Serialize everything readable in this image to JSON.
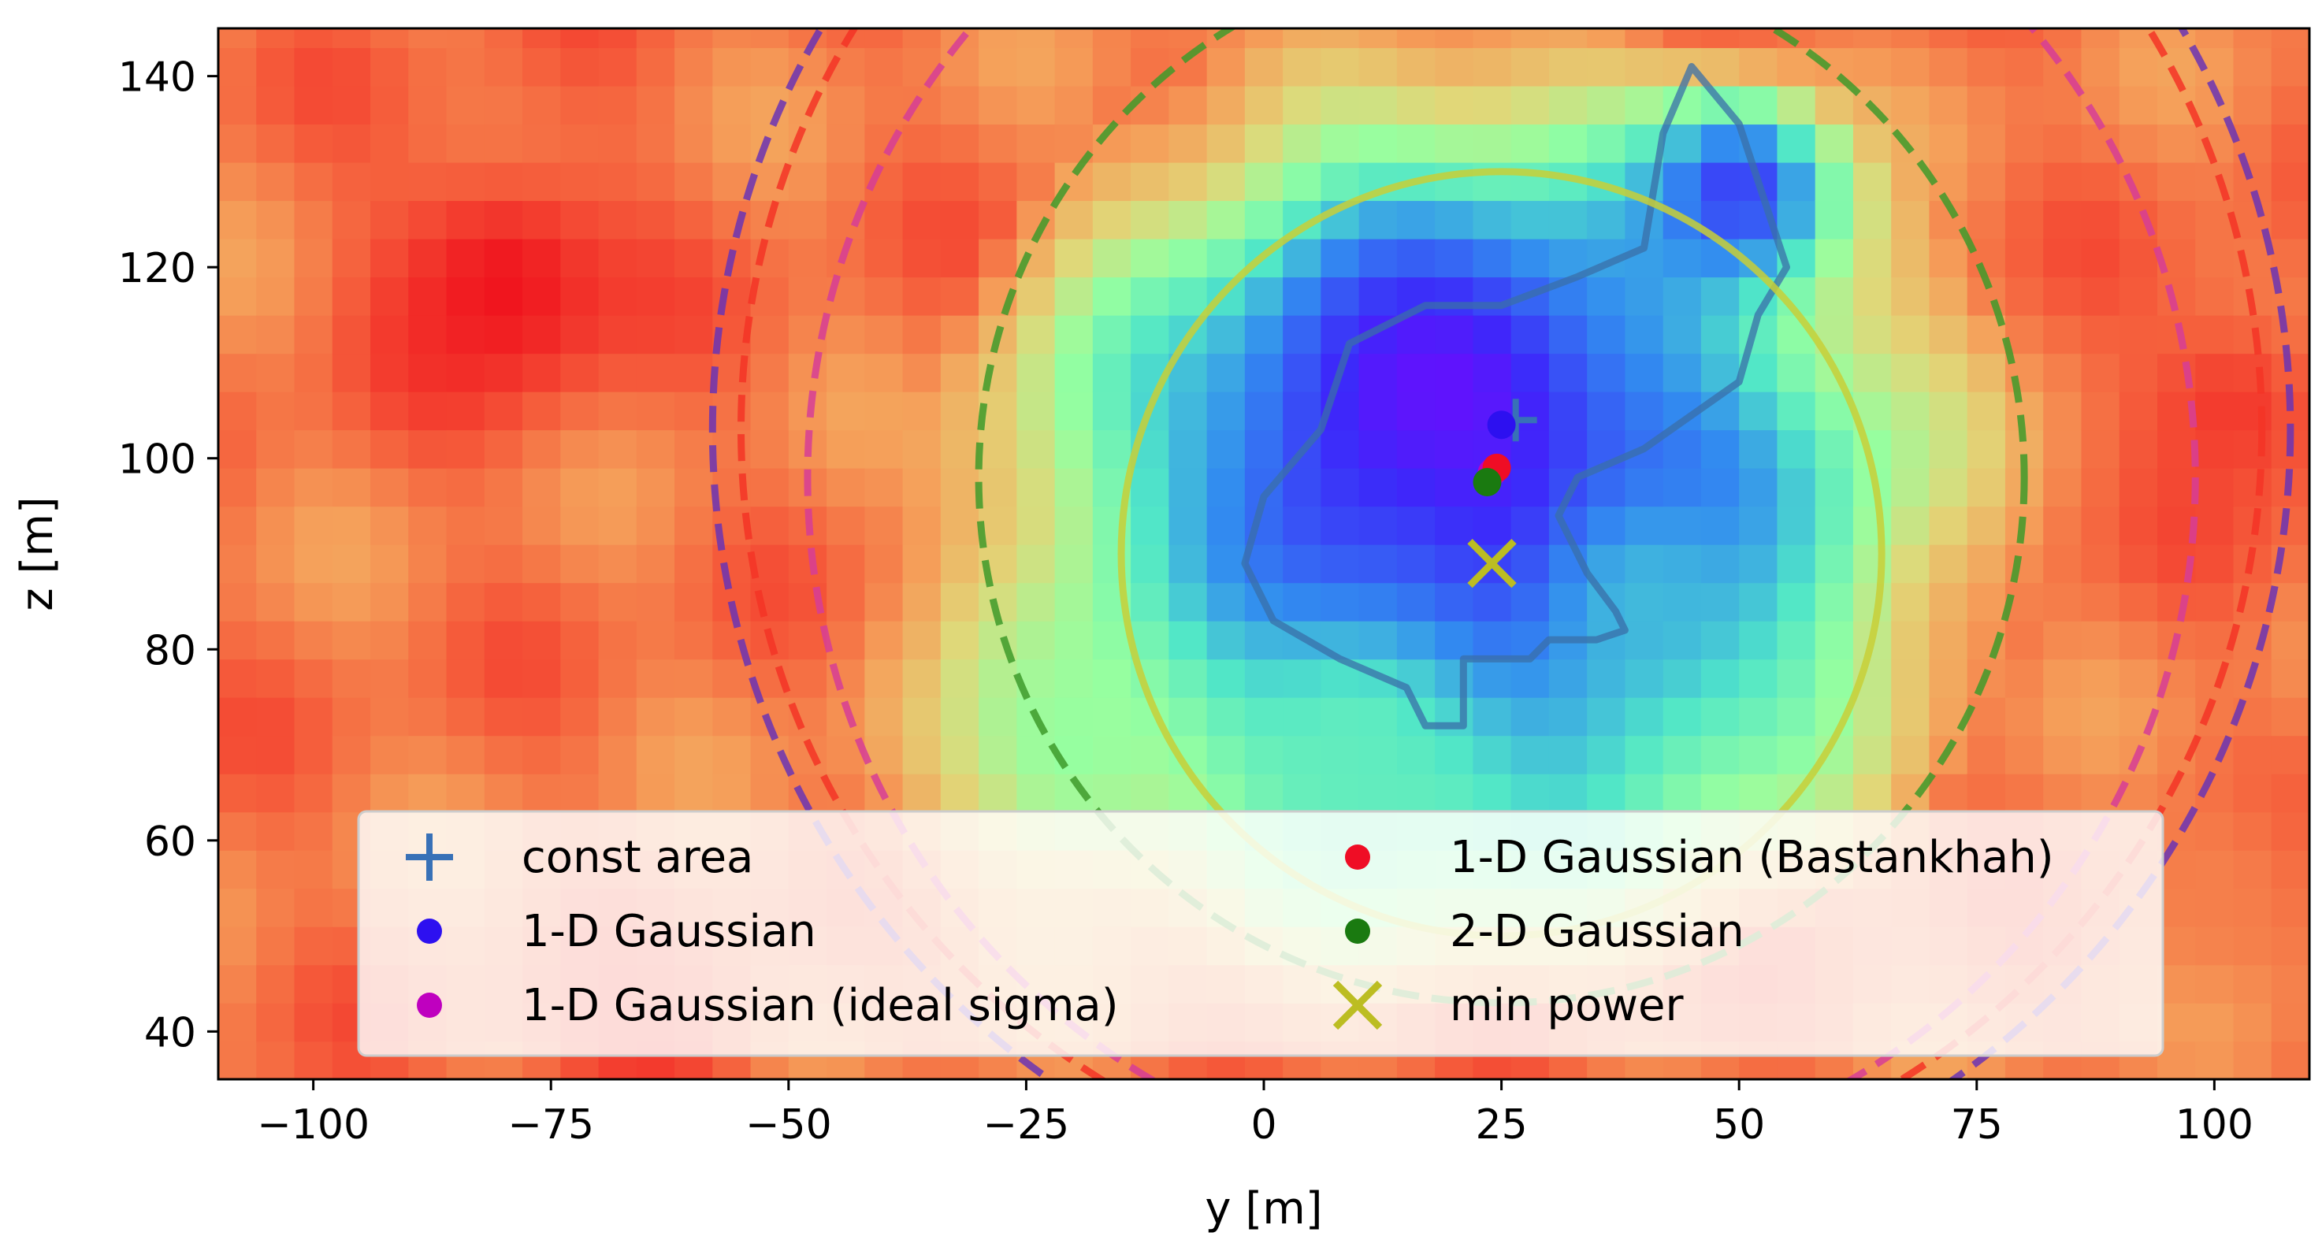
{
  "chart_data": {
    "type": "heatmap",
    "title": "",
    "xlabel": "y [m]",
    "ylabel": "z [m]",
    "xlim": [
      -110,
      110
    ],
    "ylim": [
      35,
      145
    ],
    "xticks": [
      -100,
      -75,
      -50,
      -25,
      0,
      25,
      50,
      75,
      100
    ],
    "xtick_labels": [
      "−100",
      "−75",
      "−50",
      "−25",
      "0",
      "25",
      "50",
      "75",
      "100"
    ],
    "yticks": [
      40,
      60,
      80,
      100,
      120,
      140
    ],
    "ytick_labels": [
      "40",
      "60",
      "80",
      "100",
      "120",
      "140"
    ],
    "colormap": "rainbow",
    "heatmap_features": [
      {
        "y": -80,
        "z": 118,
        "level": 1.0,
        "spread": 14
      },
      {
        "y": -65,
        "z": 38,
        "level": 0.95,
        "spread": 12
      },
      {
        "y": 102,
        "z": 105,
        "level": 0.95,
        "spread": 12
      },
      {
        "y": 100,
        "z": 55,
        "level": 0.85,
        "spread": 12
      },
      {
        "y": 18,
        "z": 105,
        "level": 0.04,
        "spread": 16
      },
      {
        "y": 12,
        "z": 88,
        "level": 0.12,
        "spread": 14
      },
      {
        "y": 50,
        "z": 128,
        "level": 0.15,
        "spread": 10
      },
      {
        "y": 10,
        "z": 70,
        "level": 0.45,
        "spread": 16
      },
      {
        "y": 40,
        "z": 85,
        "level": 0.35,
        "spread": 12
      },
      {
        "y": -20,
        "z": 70,
        "level": 0.55,
        "spread": 16
      }
    ],
    "contour_region": [
      [
        21,
        79
      ],
      [
        28,
        79
      ],
      [
        30,
        81
      ],
      [
        35,
        81
      ],
      [
        38,
        82
      ],
      [
        37,
        84
      ],
      [
        34,
        88
      ],
      [
        31,
        94
      ],
      [
        33,
        98
      ],
      [
        40,
        101
      ],
      [
        50,
        108
      ],
      [
        52,
        115
      ],
      [
        55,
        120
      ],
      [
        50,
        135
      ],
      [
        45,
        141
      ],
      [
        42,
        134
      ],
      [
        40,
        122
      ],
      [
        33,
        119
      ],
      [
        25,
        116
      ],
      [
        17,
        116
      ],
      [
        9,
        112
      ],
      [
        6,
        103
      ],
      [
        0,
        96
      ],
      [
        -2,
        89
      ],
      [
        1,
        83
      ],
      [
        8,
        79
      ],
      [
        15,
        76
      ],
      [
        17,
        72
      ],
      [
        21,
        72
      ]
    ],
    "circles": [
      {
        "name": "yellow-solid",
        "cy": 25,
        "cz": 90,
        "r": 40,
        "color": "#c8cf37",
        "style": "solid"
      },
      {
        "name": "green-dashed",
        "cy": 25,
        "cz": 98,
        "r": 55,
        "color": "#3e9a2a",
        "style": "dashed"
      },
      {
        "name": "magenta-dashed",
        "cy": 25,
        "cz": 98,
        "r": 73,
        "color": "#d63d96",
        "style": "dashed"
      },
      {
        "name": "red-dashed",
        "cy": 25,
        "cz": 103,
        "r": 80,
        "color": "#f33426",
        "style": "dashed"
      },
      {
        "name": "purple-dashed",
        "cy": 25,
        "cz": 103,
        "r": 83,
        "color": "#6a34b4",
        "style": "dashed"
      }
    ],
    "series": [
      {
        "name": "const area",
        "marker": "plus",
        "color": "#3871b7",
        "y": 26.5,
        "z": 104
      },
      {
        "name": "1-D Gaussian",
        "marker": "circle",
        "color": "#2d10f0",
        "y": 25,
        "z": 103.5
      },
      {
        "name": "1-D Gaussian (ideal sigma)",
        "marker": "circle",
        "color": "#bf00bf",
        "y": 24,
        "z": 98.5
      },
      {
        "name": "1-D Gaussian (Bastankhah)",
        "marker": "circle",
        "color": "#ef0d25",
        "y": 24.5,
        "z": 99
      },
      {
        "name": "2-D Gaussian",
        "marker": "circle",
        "color": "#1a7a10",
        "y": 23.5,
        "z": 97.5
      },
      {
        "name": "min power",
        "marker": "x",
        "color": "#bcbd22",
        "y": 24,
        "z": 89
      }
    ],
    "legend": {
      "location": "lower-center",
      "columns": 2,
      "entries": [
        "const area",
        "1-D Gaussian",
        "1-D Gaussian (ideal sigma)",
        "1-D Gaussian (Bastankhah)",
        "2-D Gaussian",
        "min power"
      ]
    }
  }
}
